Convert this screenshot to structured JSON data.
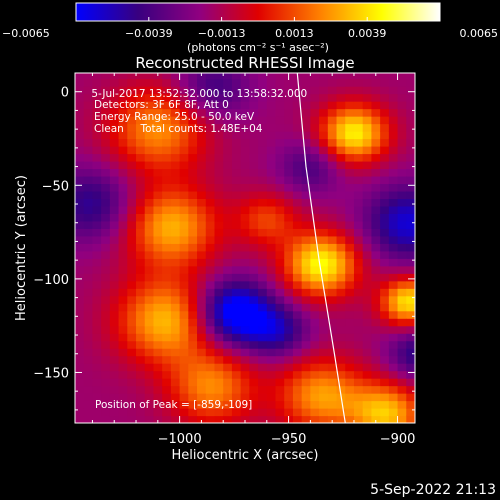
{
  "chart_data": {
    "type": "heatmap",
    "title": "Reconstructed RHESSI Image",
    "xlabel": "Heliocentric X (arcsec)",
    "ylabel": "Heliocentric Y (arcsec)",
    "xlim": [
      -1048,
      -892
    ],
    "ylim": [
      -177,
      10
    ],
    "x_ticks": [
      -1000,
      -950,
      -900
    ],
    "x_tick_labels": [
      "−1000",
      "−950",
      "−900"
    ],
    "y_ticks": [
      0,
      -50,
      -100,
      -150
    ],
    "y_tick_labels": [
      "0",
      "−50",
      "−100",
      "−150"
    ],
    "colorbar": {
      "vmin": -0.0065,
      "vmax": 0.0065,
      "ticks": [
        -0.0065,
        -0.0039,
        -0.0013,
        0.0013,
        0.0039,
        0.0065
      ],
      "tick_labels": [
        "−0.0065",
        "−0.0039",
        "−0.0013",
        "0.0013",
        "0.0039",
        "0.0065"
      ],
      "units": "(photons cm⁻² s⁻¹ asec⁻²)",
      "colormap": [
        "#0000ff",
        "#380080",
        "#900080",
        "#e00000",
        "#ff8000",
        "#ffff00",
        "#ffffff"
      ]
    },
    "annotations": [
      " 5-Jul-2017 13:52:32.000 to 13:58:32.000",
      "Detectors: 3F 6F 8F, Att 0",
      "Energy Range: 25.0 - 50.0 keV",
      "Clean     Total counts: 1.48E+04"
    ],
    "peak_label": "Position of Peak = [-859,-109]",
    "peak_position": [
      -859,
      -109
    ],
    "grid": false,
    "sources": [
      {
        "x": -1010,
        "y": -20,
        "sigma": 16,
        "amp": 0.0042
      },
      {
        "x": -1004,
        "y": -72,
        "sigma": 15,
        "amp": 0.0048
      },
      {
        "x": -1006,
        "y": -122,
        "sigma": 16,
        "amp": 0.005
      },
      {
        "x": -985,
        "y": -158,
        "sigma": 14,
        "amp": 0.004
      },
      {
        "x": -935,
        "y": -162,
        "sigma": 14,
        "amp": 0.0044
      },
      {
        "x": -905,
        "y": -172,
        "sigma": 12,
        "amp": 0.005
      },
      {
        "x": -920,
        "y": -22,
        "sigma": 11,
        "amp": 0.006
      },
      {
        "x": -935,
        "y": -92,
        "sigma": 12,
        "amp": 0.0062
      },
      {
        "x": -960,
        "y": -68,
        "sigma": 10,
        "amp": 0.0028
      },
      {
        "x": -895,
        "y": -112,
        "sigma": 9,
        "amp": 0.0058
      },
      {
        "x": -975,
        "y": -118,
        "sigma": 12,
        "amp": -0.006
      },
      {
        "x": -895,
        "y": -70,
        "sigma": 14,
        "amp": -0.004
      },
      {
        "x": -985,
        "y": 2,
        "sigma": 12,
        "amp": -0.0025
      },
      {
        "x": -940,
        "y": -40,
        "sigma": 10,
        "amp": -0.0022
      },
      {
        "x": -955,
        "y": -128,
        "sigma": 10,
        "amp": -0.003
      },
      {
        "x": -1040,
        "y": -60,
        "sigma": 14,
        "amp": -0.003
      },
      {
        "x": -890,
        "y": -140,
        "sigma": 10,
        "amp": -0.003
      }
    ],
    "limb_curve": [
      [
        -946,
        10
      ],
      [
        -942,
        -40
      ],
      [
        -936,
        -90
      ],
      [
        -929,
        -140
      ],
      [
        -924,
        -177
      ]
    ]
  },
  "footer": {
    "timestamp": "5-Sep-2022 21:13"
  }
}
